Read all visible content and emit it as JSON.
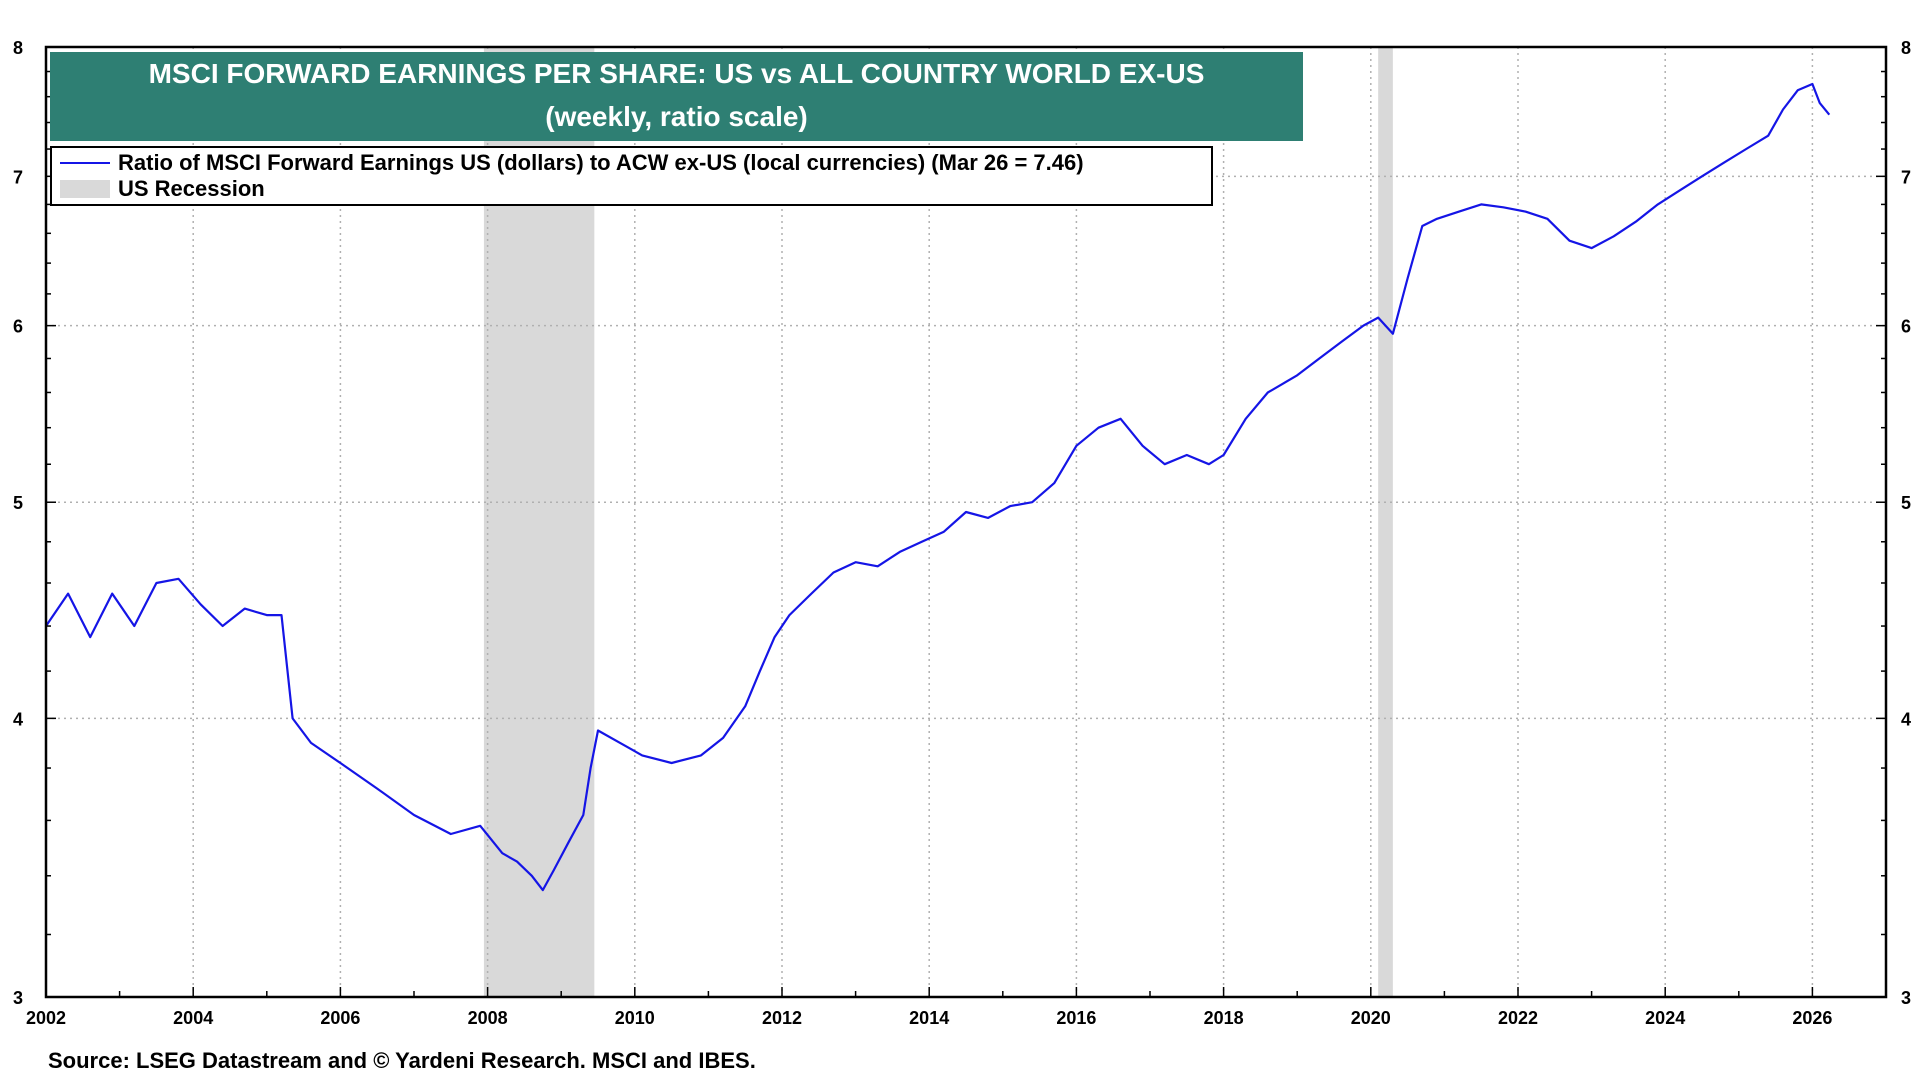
{
  "title": {
    "line1": "MSCI FORWARD EARNINGS PER SHARE: US vs ALL COUNTRY WORLD EX-US",
    "line2": "(weekly, ratio scale)"
  },
  "legend": {
    "series_label": "Ratio of MSCI Forward Earnings US (dollars) to ACW ex-US (local currencies) (Mar 26 = 7.46)",
    "recession_label": "US Recession"
  },
  "source": "Source: LSEG Datastream and © Yardeni Research. MSCI and IBES.",
  "colors": {
    "series": "#1515e6",
    "recession": "#d9d9d9",
    "title_bg": "#2e7f73",
    "grid": "#b0b0b0"
  },
  "chart_data": {
    "type": "line",
    "y_scale": "log",
    "xlim": [
      2002,
      2027
    ],
    "ylim": [
      3,
      8
    ],
    "x_ticks": [
      "2002",
      "2004",
      "2006",
      "2008",
      "2010",
      "2012",
      "2014",
      "2016",
      "2018",
      "2020",
      "2022",
      "2024",
      "2026"
    ],
    "y_ticks": [
      "3",
      "4",
      "5",
      "6",
      "7",
      "8"
    ],
    "grid": true,
    "recessions": [
      [
        2007.95,
        2009.45
      ],
      [
        2020.1,
        2020.3
      ]
    ],
    "series": [
      {
        "name": "Ratio of MSCI Forward Earnings US (dollars) to ACW ex-US (local currencies)",
        "x": [
          2002.0,
          2002.3,
          2002.6,
          2002.9,
          2003.2,
          2003.5,
          2003.8,
          2004.1,
          2004.4,
          2004.7,
          2005.0,
          2005.2,
          2005.35,
          2005.6,
          2006.0,
          2006.5,
          2007.0,
          2007.5,
          2007.9,
          2008.2,
          2008.4,
          2008.6,
          2008.75,
          2008.9,
          2009.1,
          2009.3,
          2009.4,
          2009.5,
          2009.8,
          2010.1,
          2010.5,
          2010.9,
          2011.2,
          2011.5,
          2011.7,
          2011.9,
          2012.1,
          2012.4,
          2012.7,
          2013.0,
          2013.3,
          2013.6,
          2013.9,
          2014.2,
          2014.5,
          2014.8,
          2015.1,
          2015.4,
          2015.7,
          2016.0,
          2016.3,
          2016.6,
          2016.9,
          2017.2,
          2017.5,
          2017.8,
          2018.0,
          2018.3,
          2018.6,
          2018.8,
          2019.0,
          2019.3,
          2019.6,
          2019.9,
          2020.1,
          2020.3,
          2020.5,
          2020.7,
          2020.9,
          2021.2,
          2021.5,
          2021.8,
          2022.1,
          2022.4,
          2022.7,
          2023.0,
          2023.3,
          2023.6,
          2023.9,
          2024.2,
          2024.5,
          2024.8,
          2025.1,
          2025.4,
          2025.6,
          2025.8,
          2026.0,
          2026.1,
          2026.23
        ],
        "values": [
          4.4,
          4.55,
          4.35,
          4.55,
          4.4,
          4.6,
          4.62,
          4.5,
          4.4,
          4.48,
          4.45,
          4.45,
          4.0,
          3.9,
          3.82,
          3.72,
          3.62,
          3.55,
          3.58,
          3.48,
          3.45,
          3.4,
          3.35,
          3.42,
          3.52,
          3.62,
          3.8,
          3.95,
          3.9,
          3.85,
          3.82,
          3.85,
          3.92,
          4.05,
          4.2,
          4.35,
          4.45,
          4.55,
          4.65,
          4.7,
          4.68,
          4.75,
          4.8,
          4.85,
          4.95,
          4.92,
          4.98,
          5.0,
          5.1,
          5.3,
          5.4,
          5.45,
          5.3,
          5.2,
          5.25,
          5.2,
          5.25,
          5.45,
          5.6,
          5.65,
          5.7,
          5.8,
          5.9,
          6.0,
          6.05,
          5.95,
          6.3,
          6.65,
          6.7,
          6.75,
          6.8,
          6.78,
          6.75,
          6.7,
          6.55,
          6.5,
          6.58,
          6.68,
          6.8,
          6.9,
          7.0,
          7.1,
          7.2,
          7.3,
          7.5,
          7.65,
          7.7,
          7.55,
          7.46
        ]
      }
    ]
  }
}
